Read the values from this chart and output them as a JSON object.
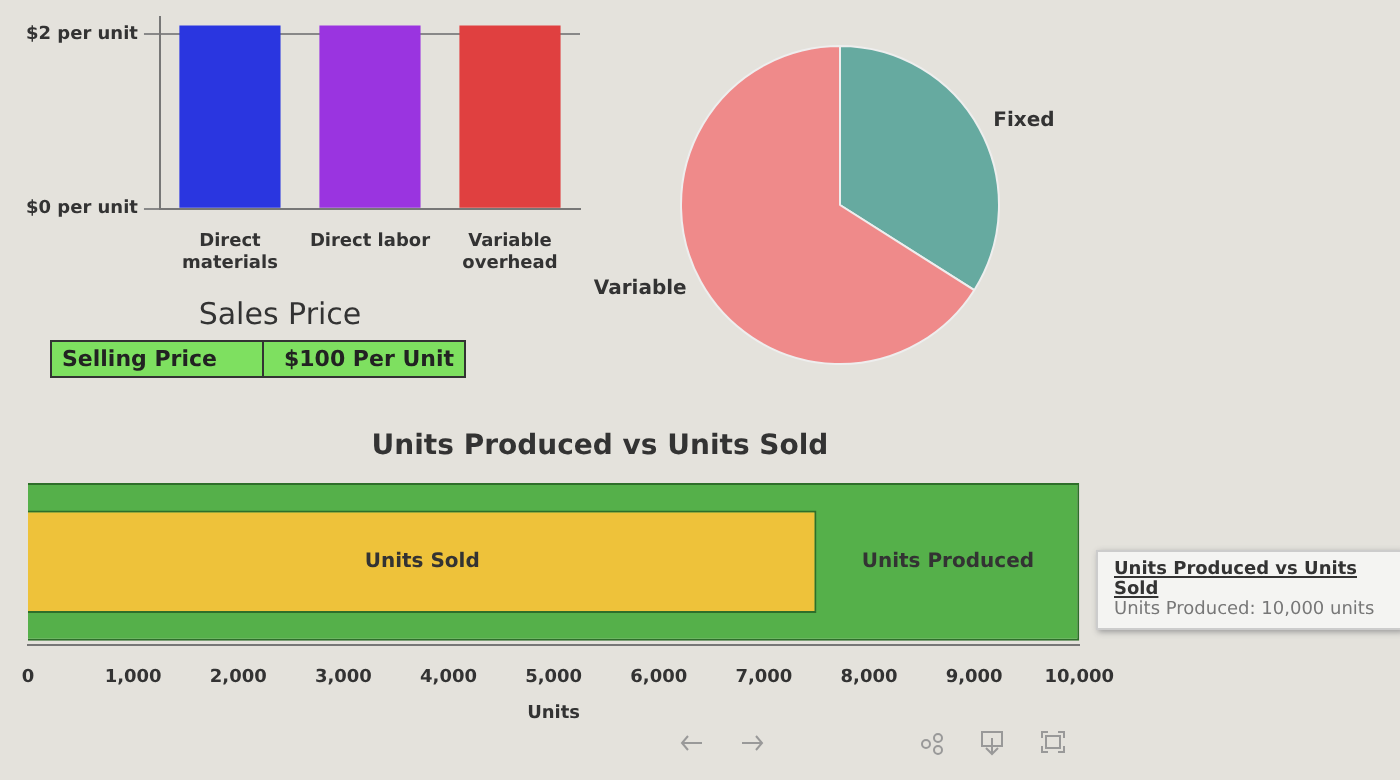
{
  "chart_data": [
    {
      "type": "bar",
      "categories": [
        "Direct materials",
        "Direct labor",
        "Variable overhead"
      ],
      "series": [
        {
          "colors": [
            "#2a36e0",
            "#9a34e0",
            "#e04040"
          ],
          "values": [
            2.1,
            2.1,
            2.1
          ]
        }
      ],
      "ylim": [
        0,
        2.2
      ],
      "yticks": [
        {
          "value": 0,
          "label": "$0 per unit"
        },
        {
          "value": 2,
          "label": "$2 per unit"
        }
      ],
      "grid": "y",
      "legend": false
    },
    {
      "type": "pie",
      "categories": [
        "Fixed",
        "Variable"
      ],
      "values": [
        34,
        66
      ],
      "colors": [
        "#66aaa0",
        "#ef8a8a"
      ],
      "legend": false
    },
    {
      "type": "other",
      "title": "Sales Price",
      "annotations": [
        "Selling Price",
        "$100 Per Unit"
      ]
    },
    {
      "type": "bar",
      "title": "Units Produced vs Units Sold",
      "orientation": "horizontal",
      "categories": [
        null
      ],
      "series": [
        {
          "name": "Units Produced",
          "color": "#55b04a",
          "values": [
            10000
          ]
        },
        {
          "name": "Units Sold",
          "color": "#eec23a",
          "values": [
            7500
          ]
        }
      ],
      "xlabel": "Units",
      "xlim": [
        0,
        10000
      ],
      "xticks": [
        0,
        {
          "value": 1000,
          "label": "1,000"
        },
        {
          "value": 2000,
          "label": "2,000"
        },
        {
          "value": 3000,
          "label": "3,000"
        },
        {
          "value": 4000,
          "label": "4,000"
        },
        {
          "value": 5000,
          "label": "5,000"
        },
        {
          "value": 6000,
          "label": "6,000"
        },
        {
          "value": 7000,
          "label": "7,000"
        },
        {
          "value": 8000,
          "label": "8,000"
        },
        {
          "value": 9000,
          "label": "9,000"
        },
        {
          "value": 10000,
          "label": "10,000"
        }
      ],
      "grid": false,
      "legend": false,
      "annotations": [
        "Units Produced vs Units Sold",
        "Units Produced: 10,000 units"
      ]
    }
  ]
}
